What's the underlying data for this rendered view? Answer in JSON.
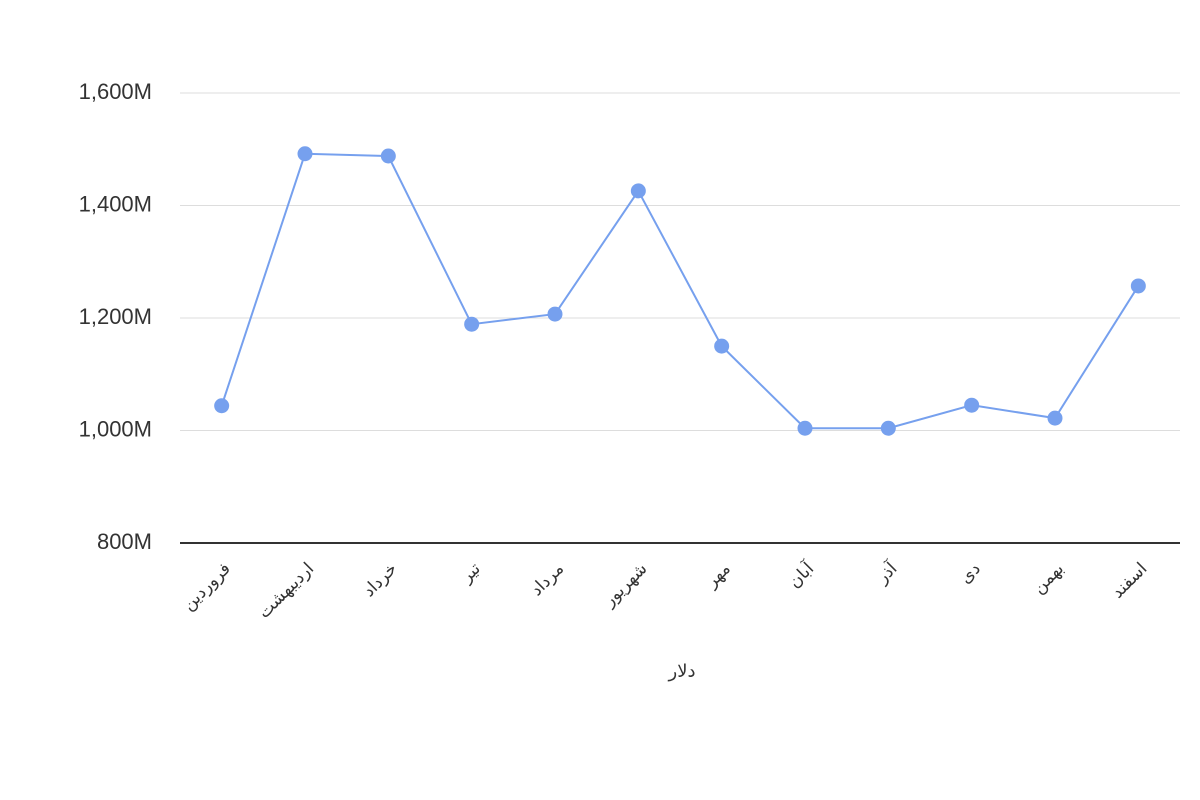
{
  "chart_data": {
    "type": "line",
    "x_label": "دلار",
    "categories": [
      "فروردین",
      "اردیبهشت",
      "خرداد",
      "تیر",
      "مرداد",
      "شهریور",
      "مهر",
      "آبان",
      "آذر",
      "دی",
      "بهمن",
      "اسفند"
    ],
    "series": [
      {
        "name": "دلار",
        "color": "#76a0ee",
        "values": [
          1044000000,
          1492000000,
          1488000000,
          1189000000,
          1207000000,
          1426000000,
          1150000000,
          1004000000,
          1004000000,
          1045000000,
          1022000000,
          1257000000
        ]
      }
    ],
    "ylim": [
      800000000,
      1600000000
    ],
    "yticks": [
      {
        "value": 800000000,
        "label": "800M"
      },
      {
        "value": 1000000000,
        "label": "1,000M"
      },
      {
        "value": 1200000000,
        "label": "1,200M"
      },
      {
        "value": 1400000000,
        "label": "1,400M"
      },
      {
        "value": 1600000000,
        "label": "1,600M"
      }
    ],
    "grid": true
  }
}
